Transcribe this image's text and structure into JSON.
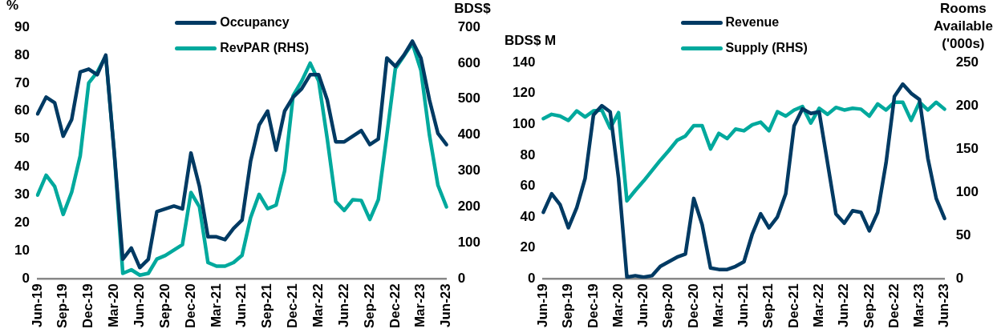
{
  "chart_data": [
    {
      "type": "line",
      "ylabel": "%",
      "y2label": "BDS$",
      "legend": "top",
      "categories": [
        "Jun-19",
        null,
        null,
        "Sep-19",
        null,
        null,
        "Dec-19",
        null,
        null,
        "Mar-20",
        null,
        null,
        "Jun-20",
        null,
        null,
        "Sep-20",
        null,
        null,
        "Dec-20",
        null,
        null,
        "Mar-21",
        null,
        null,
        "Jun-21",
        null,
        null,
        "Sep-21",
        null,
        null,
        "Dec-21",
        null,
        null,
        "Mar-22",
        null,
        null,
        "Jun-22",
        null,
        null,
        "Sep-22",
        null,
        null,
        "Dec-22",
        null,
        null,
        "Mar-23",
        null,
        null,
        "Jun-23"
      ],
      "series": [
        {
          "name": "Occupancy",
          "color": "#003a63",
          "values": [
            59,
            65,
            63,
            51,
            57,
            74,
            75,
            73,
            80,
            45,
            7,
            11,
            4,
            7,
            24,
            25,
            26,
            25,
            45,
            33,
            15,
            15,
            14,
            18,
            21,
            42,
            55,
            60,
            46,
            60,
            65,
            68,
            73,
            73,
            64,
            49,
            49,
            51,
            53,
            48,
            50,
            79,
            76,
            80,
            85,
            79,
            64,
            52,
            48
          ]
        },
        {
          "name": "RevPAR (RHS)",
          "color": "#00a99d",
          "axis": "y2",
          "values": [
            233,
            288,
            257,
            179,
            241,
            342,
            545,
            575,
            620,
            350,
            15,
            25,
            10,
            15,
            55,
            65,
            80,
            95,
            240,
            200,
            45,
            35,
            35,
            45,
            65,
            170,
            235,
            195,
            205,
            300,
            510,
            550,
            600,
            550,
            390,
            215,
            190,
            220,
            218,
            165,
            220,
            400,
            585,
            620,
            655,
            580,
            400,
            260,
            200
          ]
        }
      ],
      "ylim": [
        0,
        90
      ],
      "yticks": [
        0,
        10,
        20,
        30,
        40,
        50,
        60,
        70,
        80,
        90
      ],
      "y2lim": [
        0,
        700
      ],
      "y2ticks": [
        0,
        100,
        200,
        300,
        400,
        500,
        600,
        700
      ]
    },
    {
      "type": "line",
      "ylabel": "BDS$ M",
      "y2label": "Rooms Available ('000s)",
      "legend": "top",
      "categories": [
        "Jun-19",
        null,
        null,
        "Sep-19",
        null,
        null,
        "Dec-19",
        null,
        null,
        "Mar-20",
        null,
        null,
        "Jun-20",
        null,
        null,
        "Sep-20",
        null,
        null,
        "Dec-20",
        null,
        null,
        "Mar-21",
        null,
        null,
        "Jun-21",
        null,
        null,
        "Sep-21",
        null,
        null,
        "Dec-21",
        null,
        null,
        "Mar-22",
        null,
        null,
        "Jun-22",
        null,
        null,
        "Sep-22",
        null,
        null,
        "Dec-22",
        null,
        null,
        "Mar-23",
        null,
        null,
        "Jun-23"
      ],
      "series": [
        {
          "name": "Revenue",
          "color": "#003a63",
          "values": [
            43,
            55,
            48,
            33,
            46,
            65,
            106,
            112,
            108,
            65,
            1,
            2,
            1,
            2,
            8,
            11,
            14,
            16,
            52,
            35,
            7,
            6,
            6,
            8,
            11,
            29,
            42,
            33,
            40,
            55,
            99,
            110,
            107,
            108,
            75,
            42,
            36,
            44,
            43,
            31,
            43,
            75,
            118,
            126,
            120,
            116,
            78,
            52,
            39
          ]
        },
        {
          "name": "Supply (RHS)",
          "color": "#00a99d",
          "axis": "y2",
          "values": [
            185,
            190,
            188,
            183,
            194,
            187,
            194,
            195,
            174,
            192,
            90,
            102,
            113,
            125,
            137,
            148,
            160,
            165,
            177,
            177,
            150,
            168,
            162,
            173,
            171,
            178,
            181,
            171,
            193,
            188,
            195,
            199,
            180,
            197,
            190,
            198,
            195,
            197,
            196,
            188,
            202,
            195,
            204,
            204,
            183,
            204,
            195,
            204,
            196
          ]
        }
      ],
      "ylim": [
        0,
        140
      ],
      "yticks": [
        0,
        20,
        40,
        60,
        80,
        100,
        120,
        140
      ],
      "y2lim": [
        0,
        250
      ],
      "y2ticks": [
        0,
        50,
        100,
        150,
        200,
        250
      ]
    }
  ]
}
